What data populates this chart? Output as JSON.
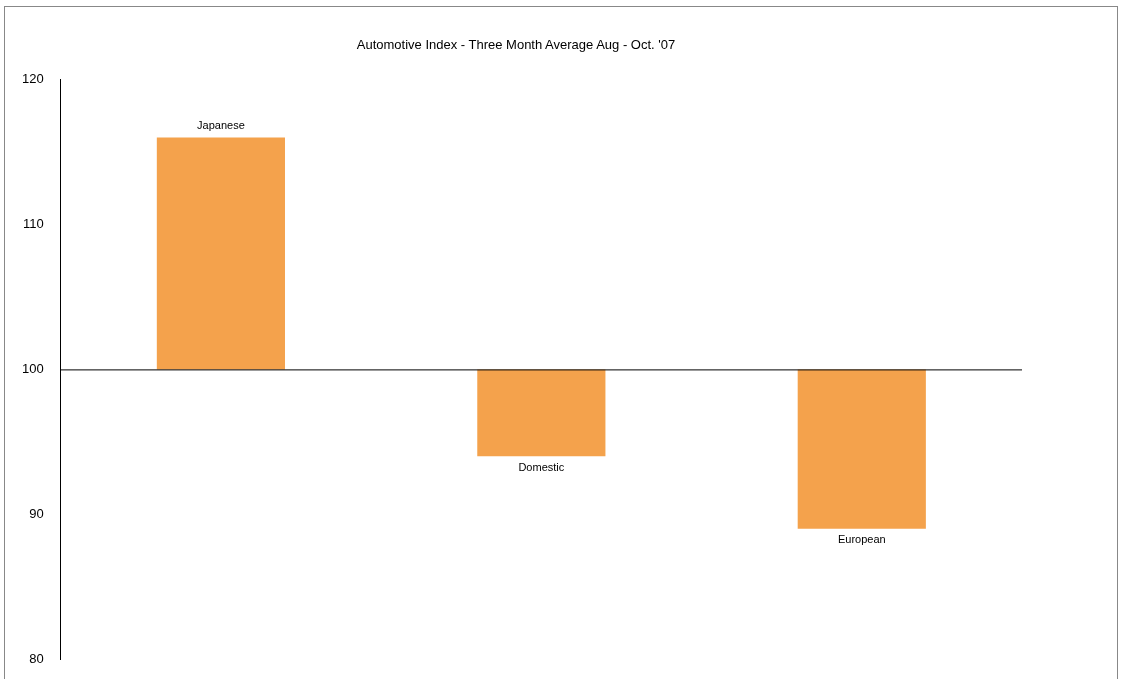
{
  "chart_data": {
    "type": "bar",
    "title": "Automotive Index - Three Month Average Aug - Oct. '07",
    "categories": [
      "Japanese",
      "Domestic",
      "European"
    ],
    "base": [
      100,
      100,
      100
    ],
    "values": [
      16,
      -6,
      -11
    ],
    "color": "#f4a24c",
    "ref_lines": [
      {
        "axis": "y",
        "value": 100,
        "color": "#000000"
      }
    ],
    "ylim": [
      80,
      120
    ],
    "yticks": [
      80,
      90,
      100,
      110,
      120
    ],
    "grid": false,
    "legend": false
  }
}
